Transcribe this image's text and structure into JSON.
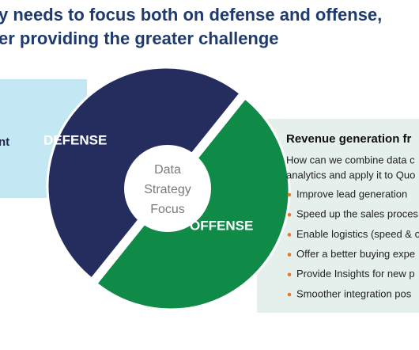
{
  "header": {
    "title_lines": [
      "y needs to focus both on defense and offense,",
      "er providing the greater challenge"
    ]
  },
  "left_box": {
    "text": "nt"
  },
  "circle": {
    "defense": "DEFENSE",
    "offense": "OFFENSE",
    "center_lines": [
      "Data",
      "Strategy",
      "Focus"
    ]
  },
  "right_panel": {
    "heading": "Revenue generation fr",
    "intro_lines": [
      "How can we combine data c",
      "analytics and apply it to Quo"
    ],
    "bullets": [
      "Improve lead generation",
      "Speed up the sales proces",
      "Enable logistics (speed & c",
      "Offer a better buying expe",
      "Provide Insights for new p",
      "Smoother integration pos"
    ]
  }
}
